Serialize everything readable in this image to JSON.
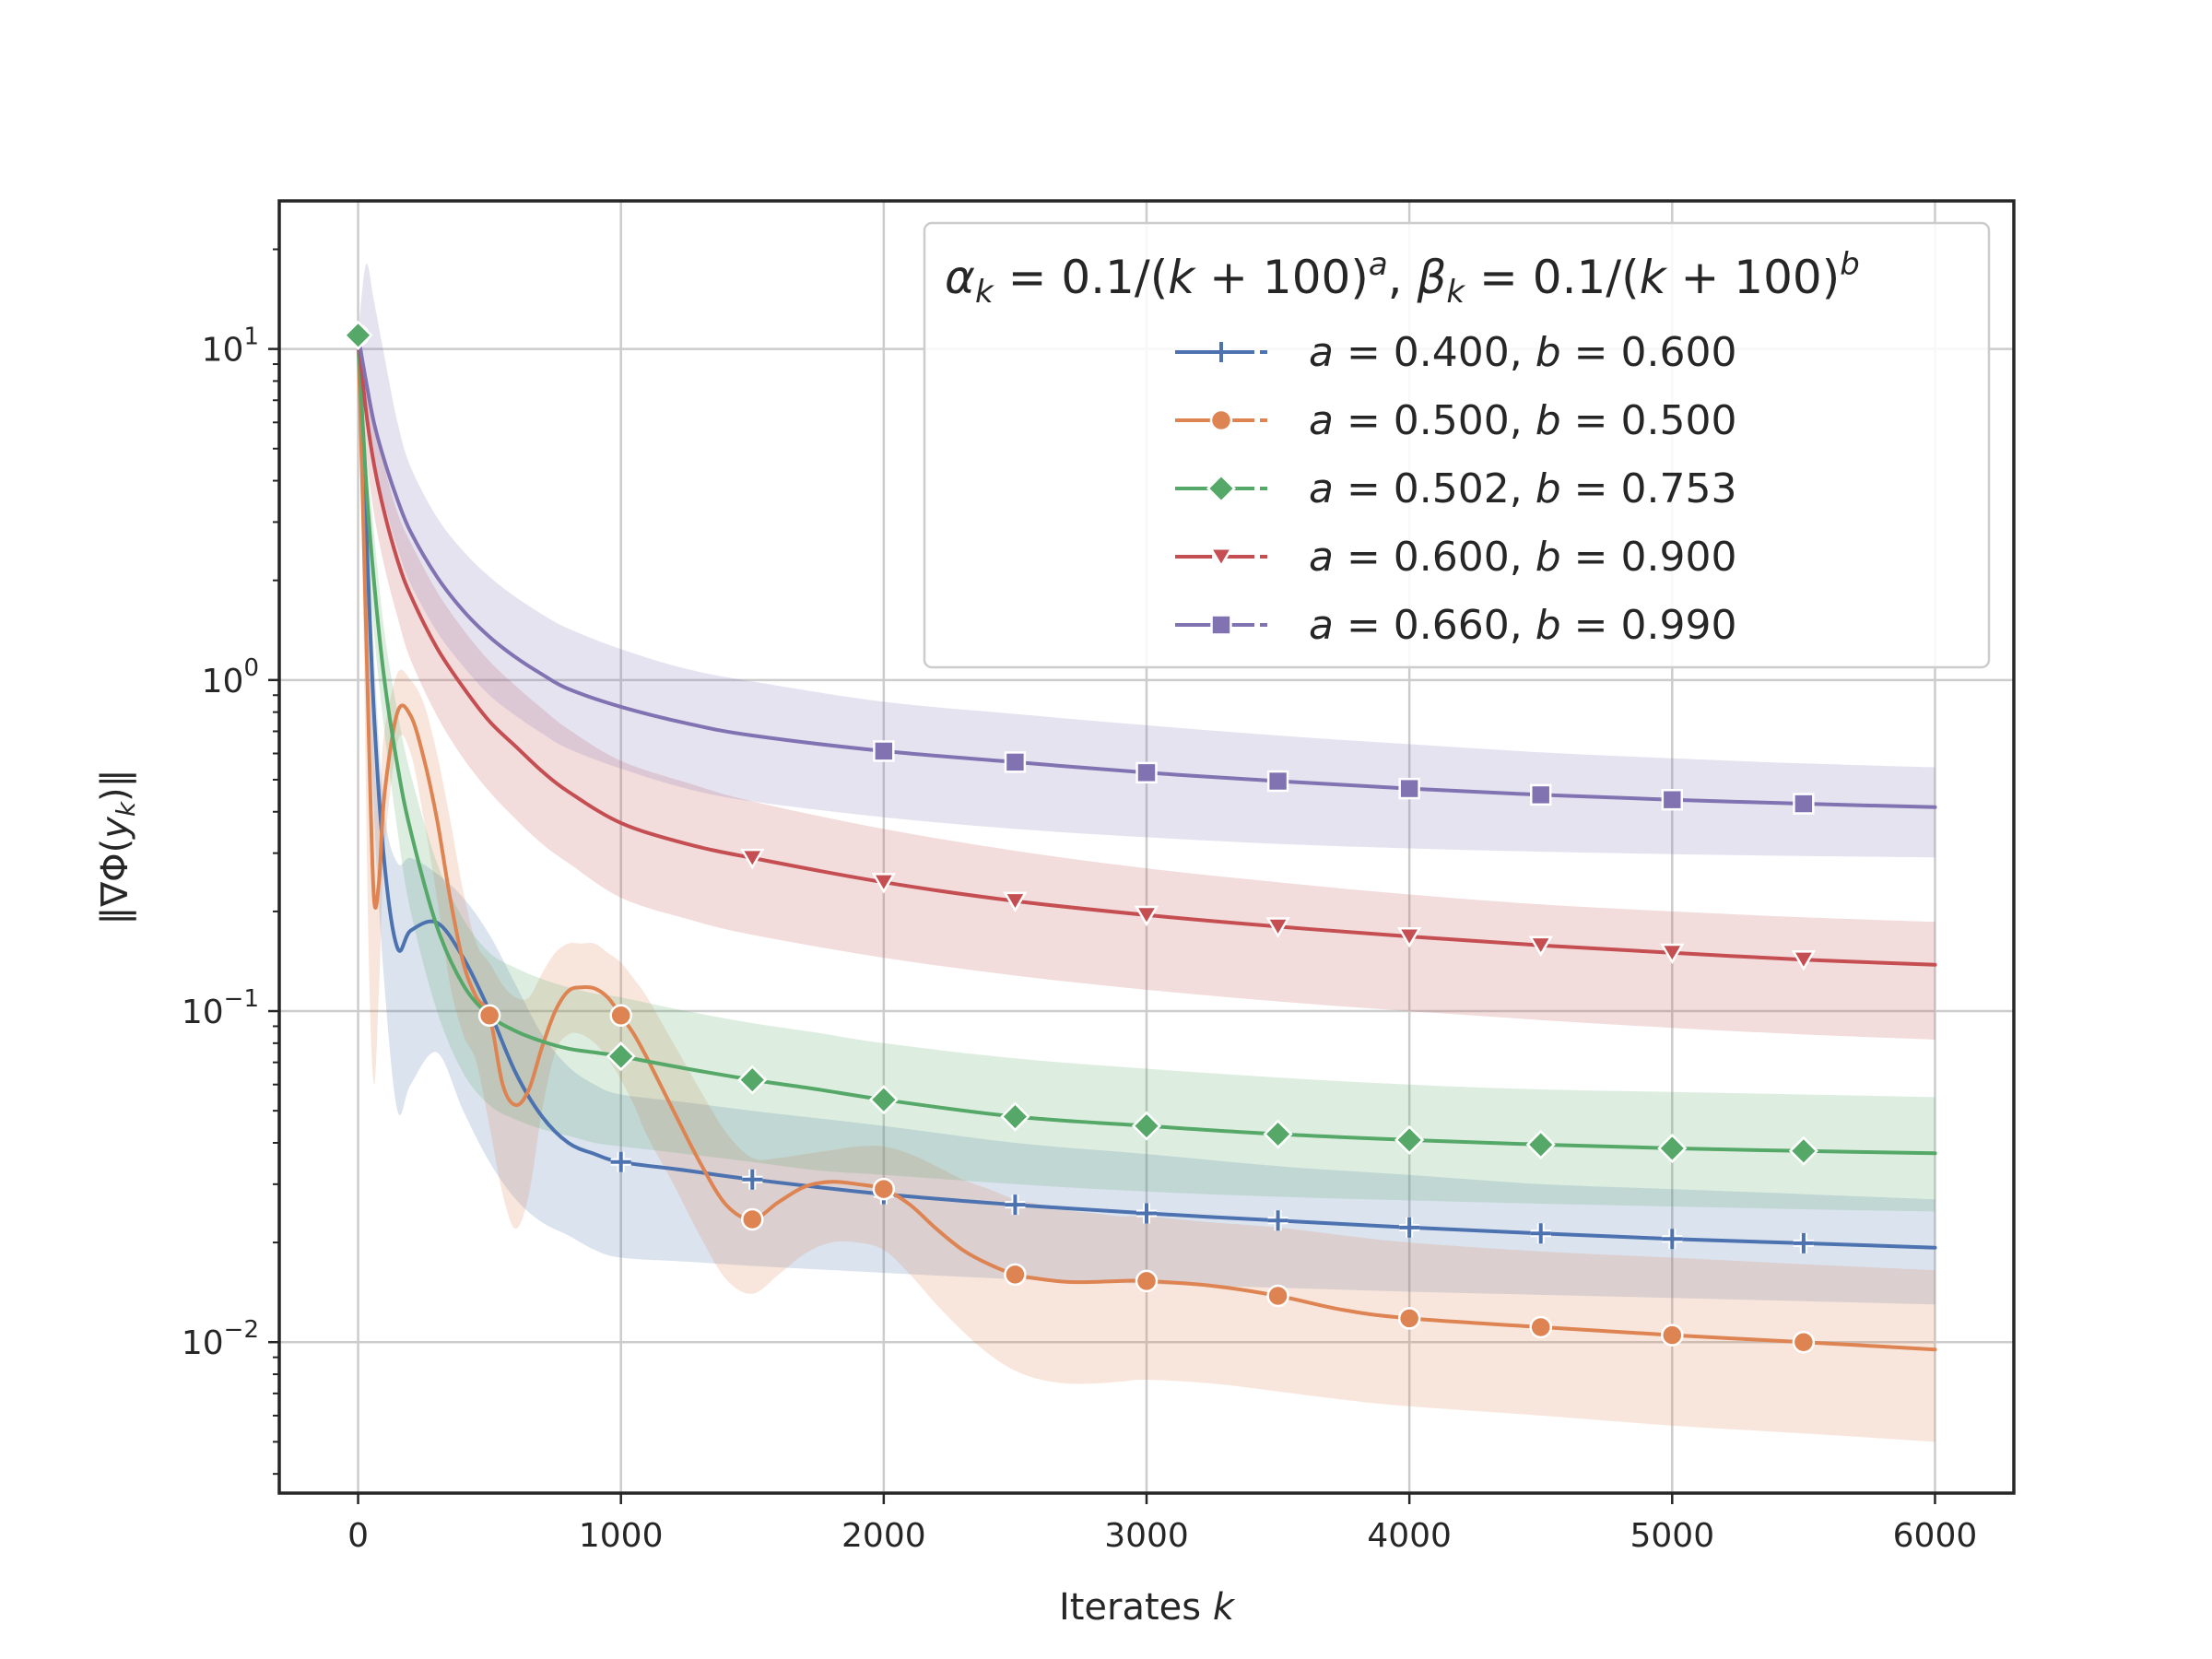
{
  "chart_data": {
    "type": "line",
    "xlabel_text": "Iterates",
    "xlabel_var": "k",
    "ylabel": "‖∇Φ(y_k)‖",
    "yscale": "log",
    "xlim": [
      -300,
      6300
    ],
    "ylim": [
      0.0035,
      28
    ],
    "xticks": [
      0,
      1000,
      2000,
      3000,
      4000,
      5000,
      6000
    ],
    "xtick_labels": [
      "0",
      "1000",
      "2000",
      "3000",
      "4000",
      "5000",
      "6000"
    ],
    "ytick_labels": [
      {
        "value": 10,
        "base": "10",
        "exp": "1"
      },
      {
        "value": 1,
        "base": "10",
        "exp": "0"
      },
      {
        "value": 0.1,
        "base": "10",
        "exp": "−1"
      },
      {
        "value": 0.01,
        "base": "10",
        "exp": "−2"
      }
    ],
    "grid": true,
    "legend_position": "upper-right",
    "legend_title": "α_k = 0.1/(k + 100)^a, β_k = 0.1/(k + 100)^b",
    "series": [
      {
        "name": "a = 0.400, b = 0.600",
        "a": "0.400",
        "b": "0.600",
        "color": "#4c72b0",
        "marker": "plus",
        "x": [
          0,
          30,
          60,
          100,
          150,
          200,
          300,
          400,
          500,
          600,
          700,
          800,
          900,
          1000,
          1250,
          1500,
          2000,
          2500,
          3000,
          3500,
          4000,
          4500,
          5000,
          5500,
          6000
        ],
        "y": [
          11,
          3.0,
          0.8,
          0.28,
          0.155,
          0.175,
          0.185,
          0.145,
          0.1,
          0.065,
          0.048,
          0.04,
          0.037,
          0.035,
          0.033,
          0.031,
          0.028,
          0.026,
          0.0245,
          0.0233,
          0.0222,
          0.0213,
          0.0205,
          0.0199,
          0.0193
        ],
        "band_low": [
          11,
          2.0,
          0.4,
          0.12,
          0.05,
          0.06,
          0.075,
          0.05,
          0.035,
          0.027,
          0.023,
          0.021,
          0.019,
          0.018,
          0.0175,
          0.017,
          0.0162,
          0.0155,
          0.015,
          0.0146,
          0.0142,
          0.0139,
          0.0136,
          0.0133,
          0.013
        ],
        "band_high": [
          11,
          4.0,
          1.2,
          0.4,
          0.28,
          0.29,
          0.26,
          0.22,
          0.17,
          0.12,
          0.085,
          0.068,
          0.06,
          0.056,
          0.053,
          0.05,
          0.045,
          0.04,
          0.037,
          0.034,
          0.032,
          0.03,
          0.029,
          0.028,
          0.027
        ],
        "marker_x": [
          0,
          1000,
          1500,
          2000,
          2500,
          3000,
          3500,
          4000,
          4500,
          5000,
          5500
        ],
        "marker_y": [
          11,
          0.035,
          0.031,
          0.028,
          0.026,
          0.0245,
          0.0233,
          0.0222,
          0.0213,
          0.0205,
          0.0199
        ]
      },
      {
        "name": "a = 0.500, b = 0.500",
        "a": "0.500",
        "b": "0.500",
        "color": "#dd8452",
        "marker": "circle",
        "x": [
          0,
          20,
          40,
          60,
          80,
          100,
          150,
          200,
          250,
          300,
          350,
          400,
          450,
          500,
          550,
          600,
          650,
          700,
          750,
          800,
          850,
          900,
          950,
          1000,
          1050,
          1100,
          1200,
          1300,
          1400,
          1500,
          1600,
          1700,
          1800,
          1900,
          2000,
          2100,
          2200,
          2300,
          2400,
          2500,
          2600,
          2700,
          2800,
          2900,
          3000,
          3250,
          3500,
          3750,
          4000,
          4500,
          5000,
          5500,
          6000
        ],
        "y": [
          11,
          3.0,
          0.7,
          0.22,
          0.25,
          0.45,
          0.8,
          0.78,
          0.58,
          0.38,
          0.22,
          0.14,
          0.11,
          0.097,
          0.06,
          0.052,
          0.058,
          0.078,
          0.1,
          0.115,
          0.118,
          0.117,
          0.11,
          0.097,
          0.085,
          0.072,
          0.05,
          0.035,
          0.026,
          0.0235,
          0.0265,
          0.0295,
          0.0305,
          0.03,
          0.029,
          0.026,
          0.022,
          0.019,
          0.0172,
          0.016,
          0.0155,
          0.0152,
          0.0152,
          0.0153,
          0.0153,
          0.0148,
          0.0138,
          0.0125,
          0.0118,
          0.0111,
          0.0105,
          0.01,
          0.0095
        ],
        "band_low": [
          11,
          1.5,
          0.15,
          0.06,
          0.12,
          0.3,
          0.65,
          0.6,
          0.38,
          0.22,
          0.12,
          0.085,
          0.07,
          0.045,
          0.028,
          0.022,
          0.028,
          0.05,
          0.075,
          0.085,
          0.085,
          0.08,
          0.072,
          0.062,
          0.052,
          0.042,
          0.03,
          0.021,
          0.0155,
          0.014,
          0.016,
          0.0185,
          0.02,
          0.02,
          0.019,
          0.016,
          0.013,
          0.0108,
          0.0092,
          0.0082,
          0.0077,
          0.0075,
          0.0075,
          0.0076,
          0.0077,
          0.0075,
          0.0071,
          0.0067,
          0.0064,
          0.006,
          0.0056,
          0.0053,
          0.005
        ],
        "band_high": [
          11,
          5.0,
          2.0,
          0.6,
          0.45,
          0.7,
          1.05,
          1.0,
          0.85,
          0.6,
          0.38,
          0.23,
          0.16,
          0.14,
          0.12,
          0.11,
          0.11,
          0.13,
          0.15,
          0.16,
          0.16,
          0.16,
          0.15,
          0.14,
          0.125,
          0.11,
          0.08,
          0.058,
          0.043,
          0.036,
          0.036,
          0.037,
          0.038,
          0.039,
          0.039,
          0.037,
          0.034,
          0.031,
          0.029,
          0.027,
          0.026,
          0.025,
          0.0245,
          0.024,
          0.024,
          0.023,
          0.0222,
          0.021,
          0.02,
          0.0188,
          0.018,
          0.0172,
          0.0165
        ],
        "marker_x": [
          0,
          500,
          1000,
          1500,
          2000,
          2500,
          3000,
          3500,
          4000,
          4500,
          5000,
          5500
        ],
        "marker_y": [
          11,
          0.097,
          0.097,
          0.0235,
          0.029,
          0.016,
          0.0153,
          0.0138,
          0.0118,
          0.0111,
          0.0105,
          0.01
        ]
      },
      {
        "name": "a = 0.502, b = 0.753",
        "a": "0.502",
        "b": "0.753",
        "color": "#55a868",
        "marker": "diamond",
        "x": [
          0,
          30,
          60,
          100,
          150,
          200,
          300,
          400,
          500,
          600,
          700,
          800,
          900,
          1000,
          1250,
          1500,
          1750,
          2000,
          2500,
          3000,
          3500,
          4000,
          4500,
          5000,
          5500,
          6000
        ],
        "y": [
          11,
          4.0,
          2.0,
          1.0,
          0.55,
          0.35,
          0.18,
          0.12,
          0.097,
          0.087,
          0.081,
          0.077,
          0.075,
          0.073,
          0.067,
          0.062,
          0.058,
          0.054,
          0.048,
          0.045,
          0.0425,
          0.0408,
          0.0395,
          0.0385,
          0.0378,
          0.0372
        ],
        "band_low": [
          11,
          3.0,
          1.4,
          0.7,
          0.35,
          0.2,
          0.1,
          0.065,
          0.052,
          0.047,
          0.044,
          0.042,
          0.04,
          0.039,
          0.037,
          0.035,
          0.033,
          0.032,
          0.03,
          0.0285,
          0.0275,
          0.0268,
          0.0262,
          0.0257,
          0.0252,
          0.0248
        ],
        "band_high": [
          11,
          5.0,
          2.8,
          1.4,
          0.8,
          0.52,
          0.28,
          0.19,
          0.15,
          0.135,
          0.125,
          0.118,
          0.113,
          0.11,
          0.1,
          0.092,
          0.086,
          0.08,
          0.072,
          0.067,
          0.063,
          0.06,
          0.058,
          0.057,
          0.056,
          0.055
        ],
        "marker_x": [
          0,
          1000,
          1500,
          2000,
          2500,
          3000,
          3500,
          4000,
          4500,
          5000,
          5500
        ],
        "marker_y": [
          11,
          0.073,
          0.062,
          0.054,
          0.048,
          0.045,
          0.0425,
          0.0408,
          0.0395,
          0.0385,
          0.0378
        ]
      },
      {
        "name": "a = 0.600, b = 0.900",
        "a": "0.600",
        "b": "0.900",
        "color": "#c44e52",
        "marker": "triangle-down",
        "x": [
          0,
          30,
          60,
          100,
          150,
          200,
          300,
          400,
          500,
          600,
          700,
          800,
          1000,
          1250,
          1500,
          2000,
          2500,
          3000,
          3500,
          4000,
          4500,
          5000,
          5500,
          6000
        ],
        "y": [
          11,
          6.5,
          4.5,
          3.2,
          2.3,
          1.8,
          1.25,
          0.95,
          0.75,
          0.63,
          0.53,
          0.46,
          0.37,
          0.32,
          0.29,
          0.245,
          0.215,
          0.195,
          0.18,
          0.168,
          0.158,
          0.15,
          0.143,
          0.138
        ],
        "band_low": [
          11,
          5.0,
          3.2,
          2.2,
          1.55,
          1.15,
          0.78,
          0.58,
          0.46,
          0.38,
          0.32,
          0.28,
          0.22,
          0.19,
          0.17,
          0.145,
          0.128,
          0.116,
          0.107,
          0.1,
          0.094,
          0.089,
          0.085,
          0.082
        ],
        "band_high": [
          11,
          8.5,
          6.0,
          4.4,
          3.2,
          2.6,
          1.85,
          1.42,
          1.14,
          0.96,
          0.82,
          0.71,
          0.57,
          0.49,
          0.43,
          0.355,
          0.305,
          0.27,
          0.245,
          0.225,
          0.21,
          0.2,
          0.192,
          0.186
        ],
        "marker_x": [
          1500,
          2000,
          2500,
          3000,
          3500,
          4000,
          4500,
          5000,
          5500
        ],
        "marker_y": [
          0.29,
          0.245,
          0.215,
          0.195,
          0.18,
          0.168,
          0.158,
          0.15,
          0.143
        ]
      },
      {
        "name": "a = 0.660, b = 0.990",
        "a": "0.660",
        "b": "0.990",
        "color": "#8172b2",
        "marker": "square",
        "x": [
          0,
          30,
          60,
          100,
          150,
          200,
          300,
          400,
          500,
          600,
          700,
          800,
          1000,
          1250,
          1500,
          2000,
          2500,
          3000,
          3500,
          4000,
          4500,
          5000,
          5500,
          6000
        ],
        "y": [
          11,
          8.0,
          6.0,
          4.6,
          3.5,
          2.8,
          2.05,
          1.62,
          1.35,
          1.17,
          1.04,
          0.94,
          0.83,
          0.74,
          0.68,
          0.61,
          0.565,
          0.525,
          0.495,
          0.47,
          0.45,
          0.435,
          0.423,
          0.413
        ],
        "band_low": [
          11,
          6.5,
          4.6,
          3.4,
          2.5,
          1.95,
          1.4,
          1.1,
          0.9,
          0.78,
          0.69,
          0.62,
          0.54,
          0.47,
          0.43,
          0.385,
          0.355,
          0.335,
          0.32,
          0.31,
          0.303,
          0.298,
          0.294,
          0.291
        ],
        "band_high": [
          11,
          18,
          14,
          9.5,
          6.0,
          4.4,
          3.1,
          2.45,
          2.05,
          1.78,
          1.58,
          1.43,
          1.24,
          1.08,
          0.99,
          0.86,
          0.79,
          0.73,
          0.68,
          0.64,
          0.605,
          0.58,
          0.56,
          0.545
        ],
        "marker_x": [
          2000,
          2500,
          3000,
          3500,
          4000,
          4500,
          5000,
          5500
        ],
        "marker_y": [
          0.61,
          0.565,
          0.525,
          0.495,
          0.47,
          0.45,
          0.435,
          0.423
        ]
      }
    ]
  }
}
